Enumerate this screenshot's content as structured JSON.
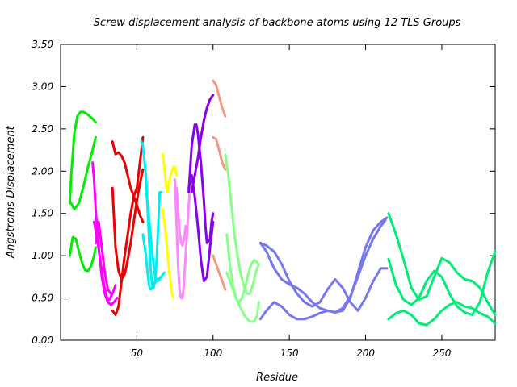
{
  "chart_data": {
    "type": "line",
    "title": "Screw displacement analysis of backbone atoms using 12 TLS Groups",
    "xlabel": "Residue",
    "ylabel": "Angstroms Displacement",
    "xlim": [
      0,
      285
    ],
    "ylim": [
      0.0,
      3.5
    ],
    "xticks": [
      50,
      100,
      150,
      200,
      250
    ],
    "xtick_labels": [
      "50",
      "100",
      "150",
      "200",
      "250"
    ],
    "yticks": [
      0.0,
      0.5,
      1.0,
      1.5,
      2.0,
      2.5,
      3.0,
      3.5
    ],
    "ytick_labels": [
      "0.00",
      "0.50",
      "1.00",
      "1.50",
      "2.00",
      "2.50",
      "3.00",
      "3.50"
    ],
    "grid": false,
    "legend": "none",
    "series": [
      {
        "color": "#00ee00",
        "x": [
          6,
          7,
          9,
          11,
          13,
          15,
          17,
          19,
          21,
          23
        ],
        "y": [
          1.62,
          1.95,
          2.45,
          2.65,
          2.7,
          2.7,
          2.68,
          2.65,
          2.62,
          2.58
        ]
      },
      {
        "color": "#00ee00",
        "x": [
          6,
          8,
          10,
          12,
          14,
          16,
          18,
          20,
          22,
          23
        ],
        "y": [
          1.0,
          1.22,
          1.2,
          1.05,
          0.92,
          0.83,
          0.82,
          0.88,
          1.0,
          1.1
        ]
      },
      {
        "color": "#00ee00",
        "x": [
          6,
          9,
          12,
          15,
          18,
          21,
          23
        ],
        "y": [
          1.65,
          1.55,
          1.62,
          1.82,
          2.05,
          2.25,
          2.4
        ]
      },
      {
        "color": "#ff00ff",
        "x": [
          21,
          22,
          23,
          25,
          27,
          29,
          31,
          33,
          35,
          37
        ],
        "y": [
          2.1,
          1.9,
          1.55,
          1.1,
          0.75,
          0.55,
          0.45,
          0.42,
          0.45,
          0.5
        ]
      },
      {
        "color": "#ff00ff",
        "x": [
          22,
          24,
          26,
          28,
          30,
          32,
          34,
          36
        ],
        "y": [
          1.4,
          1.2,
          0.95,
          0.7,
          0.52,
          0.48,
          0.55,
          0.65
        ]
      },
      {
        "color": "#ff00ff",
        "x": [
          23,
          25,
          27,
          29,
          31,
          33
        ],
        "y": [
          1.15,
          1.4,
          1.1,
          0.8,
          0.6,
          0.55
        ]
      },
      {
        "color": "#ee0000",
        "x": [
          34,
          36,
          38,
          40,
          42,
          44,
          46,
          48,
          50,
          52,
          54
        ],
        "y": [
          0.35,
          0.3,
          0.4,
          0.7,
          1.0,
          1.25,
          1.5,
          1.7,
          1.8,
          2.1,
          2.4
        ]
      },
      {
        "color": "#ee0000",
        "x": [
          34,
          36,
          38,
          40,
          42,
          44,
          46,
          48,
          50,
          52,
          54
        ],
        "y": [
          2.35,
          2.2,
          2.22,
          2.18,
          2.1,
          1.95,
          1.8,
          1.7,
          1.6,
          1.48,
          1.4
        ]
      },
      {
        "color": "#ee0000",
        "x": [
          34,
          36,
          38,
          40,
          42,
          44,
          46,
          48,
          50,
          52,
          54
        ],
        "y": [
          1.8,
          1.1,
          0.82,
          0.72,
          0.78,
          0.95,
          1.15,
          1.4,
          1.65,
          1.85,
          2.02
        ]
      },
      {
        "color": "#00eeee",
        "x": [
          53,
          54,
          56,
          58,
          59,
          60,
          61,
          62,
          63,
          64,
          65,
          66
        ],
        "y": [
          2.35,
          2.3,
          1.95,
          1.2,
          0.85,
          0.65,
          0.62,
          0.7,
          0.95,
          1.35,
          1.75,
          1.75
        ]
      },
      {
        "color": "#00eeee",
        "x": [
          54,
          56,
          57,
          58,
          59,
          60,
          62,
          64,
          66
        ],
        "y": [
          1.25,
          1.0,
          0.8,
          0.65,
          0.6,
          0.62,
          0.68,
          0.72,
          0.75
        ]
      },
      {
        "color": "#00eeee",
        "x": [
          56,
          58,
          60,
          62,
          64,
          66,
          68
        ],
        "y": [
          1.8,
          1.45,
          1.05,
          0.75,
          0.7,
          0.75,
          0.8
        ]
      },
      {
        "color": "#ffff00",
        "x": [
          67,
          68,
          69,
          70,
          71,
          72,
          73,
          74,
          75,
          76
        ],
        "y": [
          2.2,
          2.05,
          1.85,
          1.75,
          1.85,
          1.95,
          2.0,
          2.05,
          2.05,
          1.95
        ]
      },
      {
        "color": "#ffff00",
        "x": [
          67,
          68,
          69,
          70,
          71,
          72,
          73,
          74
        ],
        "y": [
          1.55,
          1.4,
          1.25,
          1.05,
          0.85,
          0.7,
          0.55,
          0.5
        ]
      },
      {
        "color": "#ff88ff",
        "x": [
          75,
          76,
          77,
          78,
          79,
          80,
          81,
          82,
          83,
          84,
          85
        ],
        "y": [
          1.9,
          1.4,
          0.9,
          0.6,
          0.5,
          0.5,
          0.7,
          1.0,
          1.3,
          1.6,
          1.8
        ]
      },
      {
        "color": "#ff88ff",
        "x": [
          76,
          77,
          78,
          79,
          80,
          81,
          82
        ],
        "y": [
          1.8,
          1.55,
          1.3,
          1.15,
          1.12,
          1.2,
          1.35
        ]
      },
      {
        "color": "#8800ee",
        "x": [
          84,
          86,
          88,
          89,
          90,
          92,
          94,
          95,
          96,
          98,
          99,
          100
        ],
        "y": [
          1.75,
          2.3,
          2.55,
          2.55,
          2.45,
          2.1,
          1.65,
          1.35,
          1.15,
          1.2,
          1.4,
          1.5
        ]
      },
      {
        "color": "#8800ee",
        "x": [
          84,
          86,
          88,
          90,
          92,
          94,
          96,
          98,
          100
        ],
        "y": [
          1.8,
          1.95,
          1.7,
          1.35,
          0.95,
          0.7,
          0.75,
          1.1,
          1.4
        ]
      },
      {
        "color": "#8800ee",
        "x": [
          86,
          88,
          90,
          92,
          94,
          96,
          98,
          100
        ],
        "y": [
          1.75,
          1.95,
          2.15,
          2.4,
          2.6,
          2.75,
          2.85,
          2.9
        ]
      },
      {
        "color": "#f49a80",
        "x": [
          100,
          102,
          104,
          106,
          108
        ],
        "y": [
          3.07,
          3.02,
          2.88,
          2.75,
          2.65
        ]
      },
      {
        "color": "#f49a80",
        "x": [
          100,
          102,
          104,
          106,
          108
        ],
        "y": [
          2.4,
          2.38,
          2.25,
          2.1,
          2.02
        ]
      },
      {
        "color": "#f49a80",
        "x": [
          100,
          102,
          104,
          106,
          108
        ],
        "y": [
          1.0,
          0.9,
          0.8,
          0.7,
          0.6
        ]
      },
      {
        "color": "#88ff88",
        "x": [
          108,
          110,
          112,
          114,
          116,
          118,
          120,
          122,
          124,
          126,
          128,
          130
        ],
        "y": [
          2.2,
          1.95,
          1.6,
          1.25,
          1.0,
          0.8,
          0.65,
          0.55,
          0.55,
          0.65,
          0.8,
          0.9
        ]
      },
      {
        "color": "#88ff88",
        "x": [
          109,
          111,
          113,
          115,
          117,
          119,
          121,
          123,
          125,
          127,
          129
        ],
        "y": [
          1.25,
          0.9,
          0.65,
          0.5,
          0.45,
          0.5,
          0.62,
          0.78,
          0.9,
          0.95,
          0.92
        ]
      },
      {
        "color": "#88ff88",
        "x": [
          109,
          112,
          115,
          118,
          121,
          124,
          127,
          129,
          130
        ],
        "y": [
          0.8,
          0.65,
          0.5,
          0.38,
          0.28,
          0.22,
          0.22,
          0.3,
          0.45
        ]
      },
      {
        "color": "#7777ee",
        "x": [
          131,
          135,
          140,
          145,
          150,
          155,
          160,
          165,
          170,
          175,
          180,
          185,
          190,
          195,
          200,
          205,
          210,
          214
        ],
        "y": [
          1.15,
          1.12,
          1.05,
          0.9,
          0.7,
          0.55,
          0.45,
          0.4,
          0.45,
          0.6,
          0.72,
          0.62,
          0.45,
          0.35,
          0.5,
          0.7,
          0.85,
          0.85
        ]
      },
      {
        "color": "#7777ee",
        "x": [
          131,
          135,
          140,
          145,
          150,
          155,
          160,
          165,
          170,
          175,
          180,
          185,
          190,
          195,
          200,
          205,
          210,
          213
        ],
        "y": [
          1.15,
          1.05,
          0.85,
          0.72,
          0.66,
          0.62,
          0.55,
          0.45,
          0.38,
          0.35,
          0.33,
          0.38,
          0.52,
          0.75,
          1.0,
          1.2,
          1.35,
          1.42
        ]
      },
      {
        "color": "#7777ee",
        "x": [
          131,
          135,
          140,
          145,
          150,
          155,
          160,
          165,
          170,
          175,
          180,
          185,
          190,
          195,
          200,
          205,
          210,
          214
        ],
        "y": [
          0.25,
          0.35,
          0.45,
          0.4,
          0.3,
          0.25,
          0.25,
          0.28,
          0.32,
          0.35,
          0.33,
          0.35,
          0.5,
          0.8,
          1.1,
          1.3,
          1.4,
          1.45
        ]
      },
      {
        "color": "#00ee77",
        "x": [
          215,
          220,
          225,
          230,
          235,
          240,
          245,
          250,
          255,
          260,
          265,
          270,
          275,
          280,
          285
        ],
        "y": [
          1.5,
          1.25,
          0.95,
          0.62,
          0.48,
          0.52,
          0.75,
          0.97,
          0.92,
          0.8,
          0.72,
          0.7,
          0.62,
          0.45,
          0.3
        ]
      },
      {
        "color": "#00ee77",
        "x": [
          215,
          220,
          225,
          230,
          235,
          240,
          245,
          250,
          255,
          260,
          265,
          270,
          275,
          280,
          285
        ],
        "y": [
          0.96,
          0.65,
          0.48,
          0.42,
          0.5,
          0.7,
          0.82,
          0.75,
          0.55,
          0.4,
          0.33,
          0.3,
          0.45,
          0.8,
          1.05
        ]
      },
      {
        "color": "#00ee77",
        "x": [
          215,
          220,
          225,
          230,
          235,
          240,
          245,
          250,
          255,
          260,
          265,
          270,
          275,
          280,
          285
        ],
        "y": [
          0.25,
          0.32,
          0.35,
          0.3,
          0.2,
          0.18,
          0.25,
          0.35,
          0.42,
          0.45,
          0.4,
          0.38,
          0.32,
          0.28,
          0.2
        ]
      }
    ]
  }
}
